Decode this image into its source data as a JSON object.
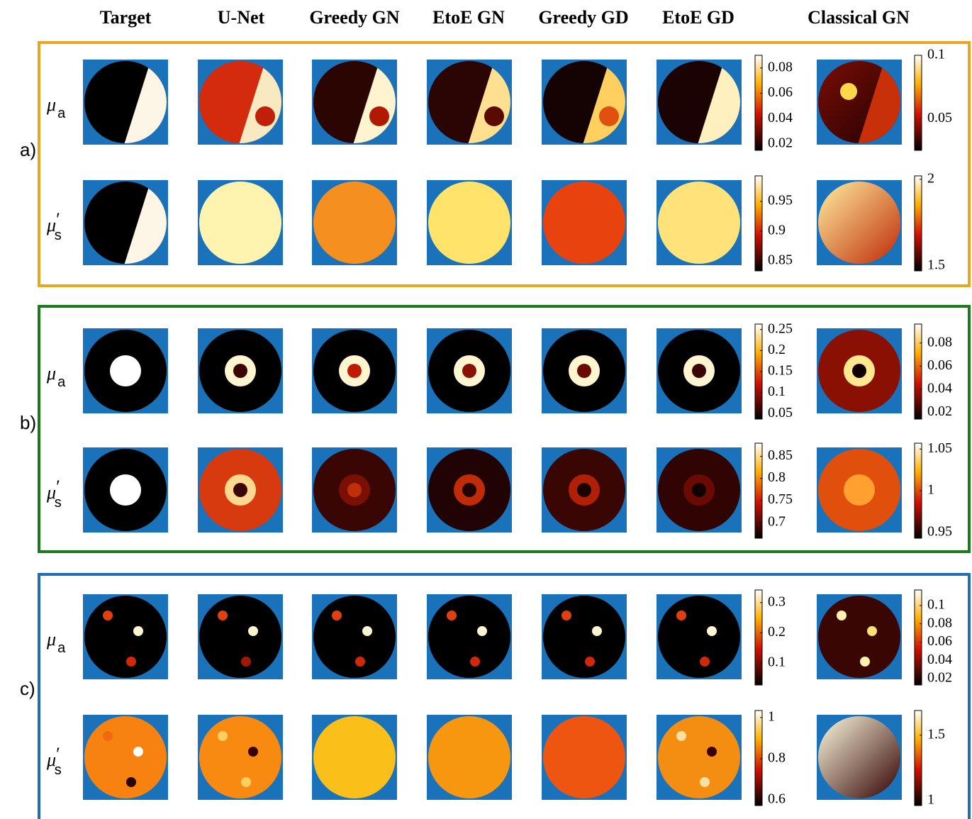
{
  "columns": [
    "Target",
    "U-Net",
    "Greedy GN",
    "EtoE GN",
    "Greedy GD",
    "EtoE GD",
    "Classical GN"
  ],
  "panels": [
    {
      "label": "a)",
      "rows": [
        {
          "symbol": "μ",
          "sub": "a",
          "colorbars": [
            {
              "lim": [
                0.015,
                0.09
              ],
              "ticks": [
                0.02,
                0.04,
                0.06,
                0.08
              ]
            },
            {
              "lim": [
                0.025,
                0.1
              ],
              "ticks": [
                0.05,
                0.1
              ]
            }
          ]
        },
        {
          "symbol": "μ",
          "prime": "′",
          "sub": "s",
          "colorbars": [
            {
              "lim": [
                0.833,
                0.993
              ],
              "ticks": [
                0.85,
                0.9,
                0.95
              ]
            },
            {
              "lim": [
                1.47,
                2.02
              ],
              "ticks": [
                1.5,
                2
              ]
            }
          ]
        }
      ]
    },
    {
      "label": "b)",
      "rows": [
        {
          "symbol": "μ",
          "sub": "a",
          "colorbars": [
            {
              "lim": [
                0.037,
                0.263
              ],
              "ticks": [
                0.05,
                0.1,
                0.15,
                0.2,
                0.25
              ]
            },
            {
              "lim": [
                0.014,
                0.0965
              ],
              "ticks": [
                0.02,
                0.04,
                0.06,
                0.08
              ]
            }
          ]
        },
        {
          "symbol": "μ",
          "prime": "′",
          "sub": "s",
          "colorbars": [
            {
              "lim": [
                0.664,
                0.88
              ],
              "ticks": [
                0.7,
                0.75,
                0.8,
                0.85
              ]
            },
            {
              "lim": [
                0.943,
                1.057
              ],
              "ticks": [
                0.95,
                1,
                1.05
              ]
            }
          ]
        }
      ]
    },
    {
      "label": "c)",
      "rows": [
        {
          "symbol": "μ",
          "sub": "a",
          "colorbars": [
            {
              "lim": [
                0.027,
                0.342
              ],
              "ticks": [
                0.1,
                0.2,
                0.3
              ]
            },
            {
              "lim": [
                0.013,
                0.117
              ],
              "ticks": [
                0.02,
                0.04,
                0.06,
                0.08,
                0.1
              ]
            }
          ]
        },
        {
          "symbol": "μ",
          "prime": "′",
          "sub": "s",
          "colorbars": [
            {
              "lim": [
                0.573,
                1.034
              ],
              "ticks": [
                0.6,
                0.8,
                1
              ]
            },
            {
              "lim": [
                0.962,
                1.688
              ],
              "ticks": [
                1,
                1.5
              ]
            }
          ]
        }
      ]
    }
  ]
}
